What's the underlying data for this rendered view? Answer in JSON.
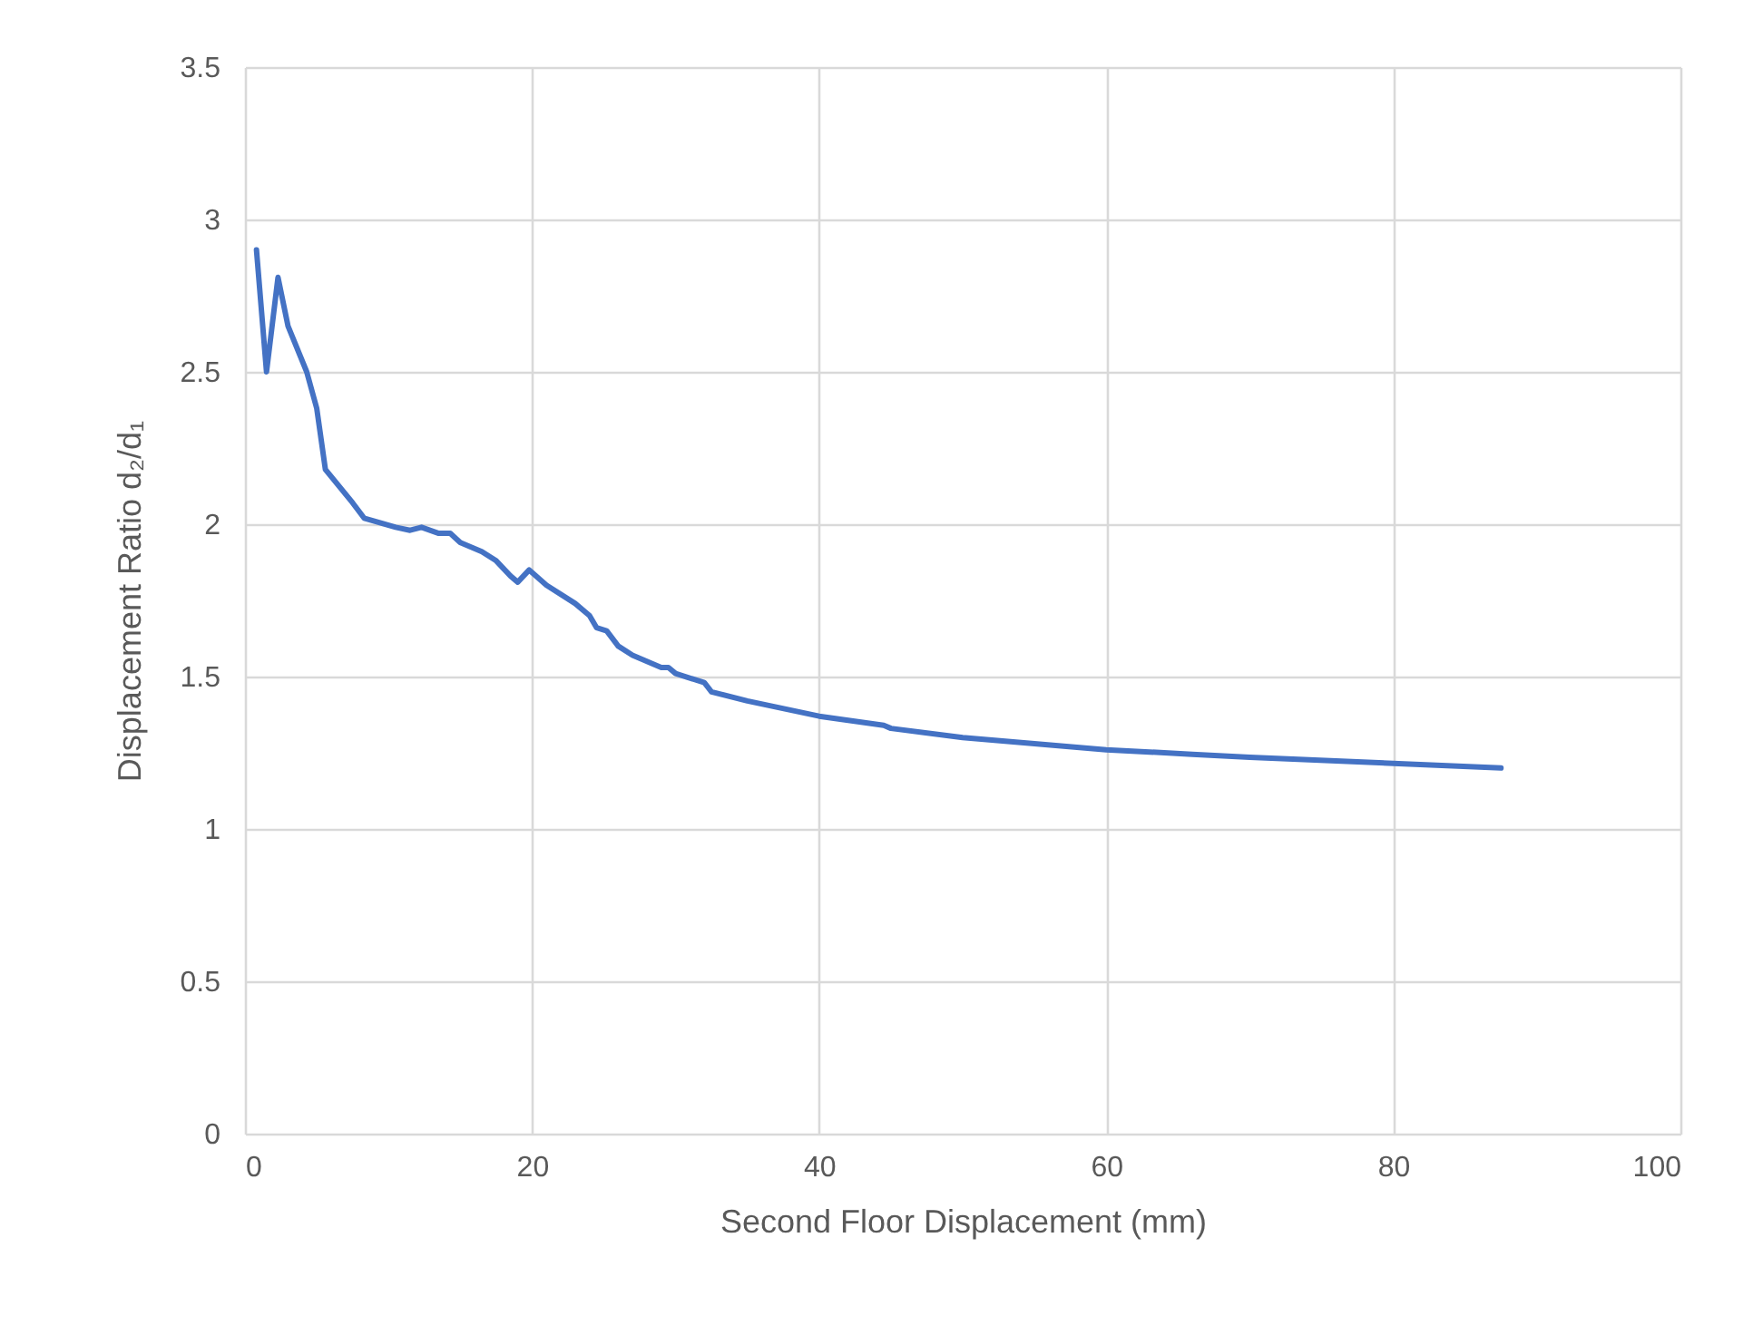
{
  "chart_data": {
    "type": "line",
    "xlabel": "Second Floor Displacement (mm)",
    "ylabel": "Displacement Ratio d₂/d₁",
    "x": [
      0.8,
      1.5,
      2.3,
      3.0,
      4.3,
      5.0,
      5.6,
      7.5,
      8.3,
      10.5,
      11.5,
      12.3,
      13.5,
      14.3,
      15,
      16.5,
      17.5,
      18.5,
      19,
      19.8,
      21,
      23,
      24,
      24.5,
      25.2,
      26,
      27,
      29,
      29.5,
      30,
      32,
      32.5,
      35,
      40,
      44.5,
      45,
      50,
      55,
      60,
      66,
      70,
      80,
      87.5
    ],
    "series": [
      {
        "color": "#4472c4",
        "values": [
          2.9,
          2.5,
          2.81,
          2.65,
          2.5,
          2.38,
          2.18,
          2.07,
          2.02,
          1.99,
          1.98,
          1.99,
          1.97,
          1.97,
          1.94,
          1.91,
          1.88,
          1.83,
          1.81,
          1.85,
          1.8,
          1.74,
          1.7,
          1.66,
          1.65,
          1.6,
          1.57,
          1.53,
          1.53,
          1.51,
          1.48,
          1.45,
          1.42,
          1.37,
          1.34,
          1.33,
          1.3,
          1.28,
          1.26,
          1.245,
          1.235,
          1.215,
          1.2
        ]
      }
    ],
    "xlim": [
      0,
      100
    ],
    "xticks": [
      0,
      20,
      40,
      60,
      80,
      100
    ],
    "ylim": [
      0,
      3.5
    ],
    "yticks": [
      0,
      0.5,
      1,
      1.5,
      2,
      2.5,
      3,
      3.5
    ],
    "grid": true,
    "legend": false,
    "marker": "none",
    "line_style": "solid"
  }
}
